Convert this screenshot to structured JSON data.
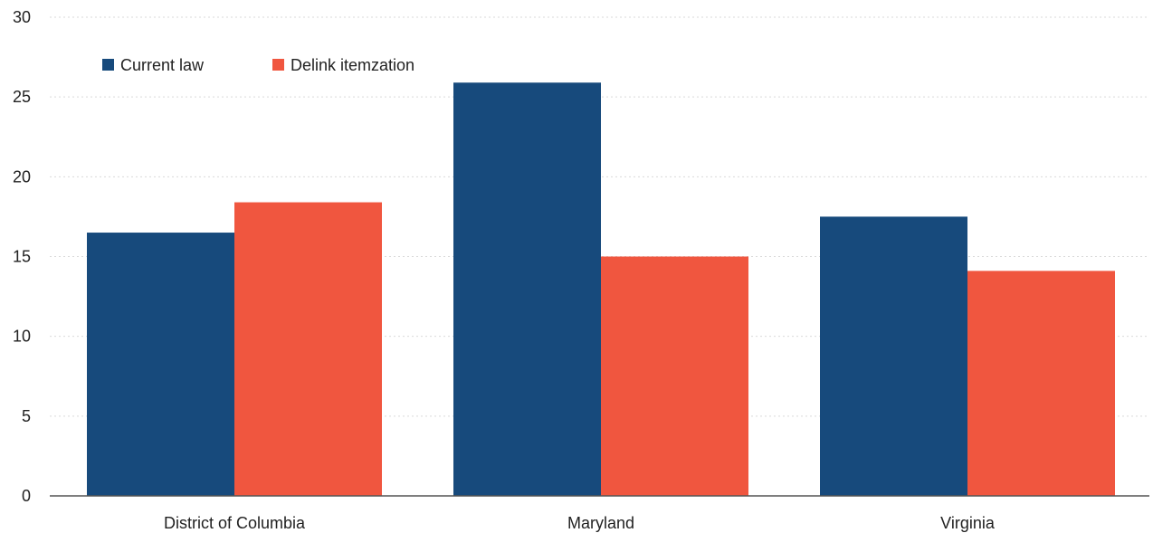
{
  "chart_data": {
    "type": "bar",
    "title": "",
    "xlabel": "",
    "ylabel": "",
    "categories": [
      "District of Columbia",
      "Maryland",
      "Virginia"
    ],
    "series": [
      {
        "name": "Current law",
        "values": [
          16.5,
          25.9,
          17.5
        ],
        "color": "#174a7c"
      },
      {
        "name": "Delink itemzation",
        "values": [
          18.4,
          15.0,
          14.1
        ],
        "color": "#f0563f"
      }
    ],
    "ylim": [
      0,
      30
    ],
    "yticks": [
      0,
      5,
      10,
      15,
      20,
      25,
      30
    ],
    "grid": "horizontal dotted",
    "legend": "top-left"
  }
}
